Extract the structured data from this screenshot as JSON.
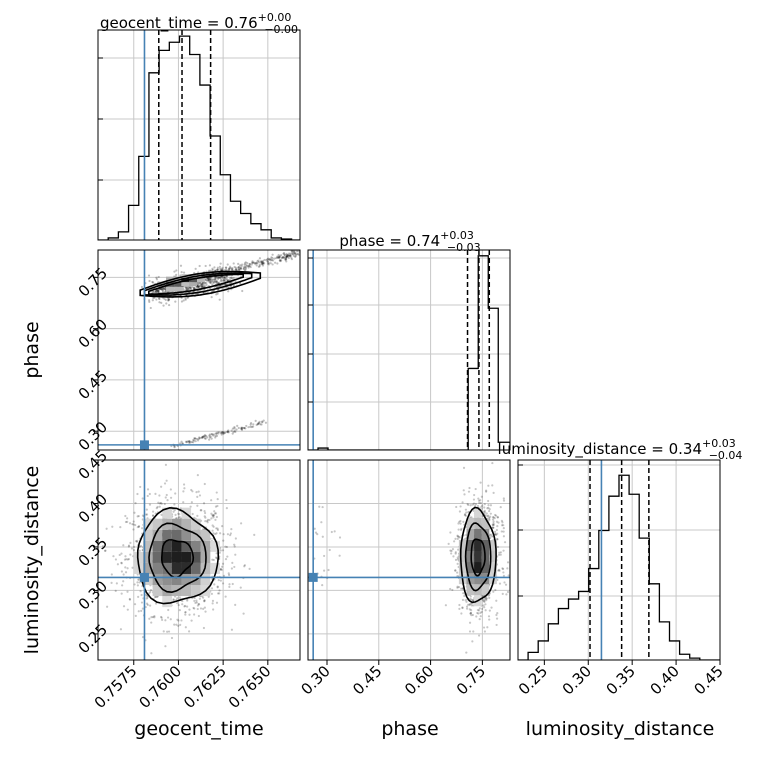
{
  "chart_data": {
    "type": "corner",
    "parameters": [
      "geocent_time",
      "phase",
      "luminosity_distance"
    ],
    "truth": {
      "geocent_time": 0.7581,
      "phase": 0.26,
      "luminosity_distance": 0.315
    },
    "colors": {
      "truth": "#4682b4",
      "hist": "#000000",
      "grid": "#c8c8c8"
    },
    "grid": true,
    "marginals": [
      {
        "param": "geocent_time",
        "title_base": "geocent_time = 0.76",
        "title_sup": "+0.00",
        "title_sub": "−0.00",
        "xlim": [
          0.7555,
          0.7668
        ],
        "ylim": [
          0,
          1.03
        ],
        "quantiles": [
          0.7589,
          0.7602,
          0.7618
        ],
        "edges": [
          0.7555,
          0.75607,
          0.75664,
          0.75721,
          0.75778,
          0.75835,
          0.75892,
          0.75949,
          0.76006,
          0.76063,
          0.7612,
          0.76177,
          0.76234,
          0.76291,
          0.76348,
          0.76405,
          0.76462,
          0.76519,
          0.76576,
          0.76633,
          0.7668
        ],
        "counts": [
          0.0,
          0.01,
          0.04,
          0.17,
          0.41,
          0.82,
          0.93,
          0.97,
          1.0,
          0.91,
          0.76,
          0.51,
          0.32,
          0.19,
          0.13,
          0.08,
          0.05,
          0.01,
          0.005,
          0.0
        ]
      },
      {
        "param": "phase",
        "title_base": "phase = 0.74",
        "title_sup": "+0.03",
        "title_sub": "−0.03",
        "xlim": [
          0.245,
          0.83
        ],
        "ylim": [
          0,
          1.03
        ],
        "quantiles": [
          0.707,
          0.74,
          0.77
        ],
        "edges": [
          0.245,
          0.274,
          0.303,
          0.332,
          0.361,
          0.39,
          0.419,
          0.448,
          0.477,
          0.506,
          0.535,
          0.564,
          0.593,
          0.622,
          0.651,
          0.68,
          0.709,
          0.738,
          0.767,
          0.796,
          0.83
        ],
        "counts": [
          0.0,
          0.01,
          0.0,
          0.0,
          0.0,
          0.0,
          0.0,
          0.0,
          0.0,
          0.0,
          0.0,
          0.0,
          0.0,
          0.0,
          0.0,
          0.0,
          0.42,
          1.0,
          0.73,
          0.04
        ]
      },
      {
        "param": "luminosity_distance",
        "title_base": "luminosity_distance = 0.34",
        "title_sup": "+0.03",
        "title_sub": "−0.04",
        "xlim": [
          0.22,
          0.45
        ],
        "ylim": [
          0,
          1.05
        ],
        "quantiles": [
          0.302,
          0.338,
          0.369
        ],
        "edges": [
          0.22,
          0.2315,
          0.243,
          0.2545,
          0.266,
          0.2775,
          0.289,
          0.3005,
          0.312,
          0.3235,
          0.335,
          0.3465,
          0.358,
          0.3695,
          0.381,
          0.3925,
          0.404,
          0.4155,
          0.427,
          0.4385,
          0.45
        ],
        "counts": [
          0.0,
          0.04,
          0.1,
          0.19,
          0.27,
          0.32,
          0.36,
          0.48,
          0.68,
          0.86,
          0.97,
          0.87,
          0.64,
          0.4,
          0.2,
          0.1,
          0.03,
          0.01,
          0.0,
          0.0
        ]
      }
    ],
    "pairs": [
      {
        "x": "geocent_time",
        "y": "phase",
        "xlim": [
          0.7555,
          0.7668
        ],
        "ylim": [
          0.245,
          0.83
        ],
        "dense_region": {
          "x": [
            0.7585,
            0.763
          ],
          "y": [
            0.68,
            0.78
          ]
        },
        "tail": {
          "x": [
            0.7612,
            0.7668
          ],
          "y": [
            0.75,
            0.82
          ]
        },
        "wrap_band": {
          "x": [
            0.7595,
            0.765
          ],
          "y": [
            0.255,
            0.33
          ]
        }
      },
      {
        "x": "geocent_time",
        "y": "luminosity_distance",
        "xlim": [
          0.7555,
          0.7668
        ],
        "ylim": [
          0.22,
          0.45
        ],
        "center": [
          0.7599,
          0.338
        ],
        "spread": [
          0.0011,
          0.026
        ]
      },
      {
        "x": "phase",
        "y": "luminosity_distance",
        "xlim": [
          0.245,
          0.83
        ],
        "ylim": [
          0.22,
          0.45
        ],
        "center": [
          0.737,
          0.339
        ],
        "spread": [
          0.025,
          0.026
        ]
      }
    ],
    "ticks": {
      "geocent_time": {
        "values": [
          0.7575,
          0.76,
          0.7625,
          0.765
        ],
        "labels": [
          "0.7575",
          "0.7600",
          "0.7625",
          "0.7650"
        ]
      },
      "phase": {
        "values": [
          0.3,
          0.45,
          0.6,
          0.75
        ],
        "labels": [
          "0.30",
          "0.45",
          "0.60",
          "0.75"
        ]
      },
      "luminosity_distance": {
        "values": [
          0.25,
          0.3,
          0.35,
          0.4,
          0.45
        ],
        "labels": [
          "0.25",
          "0.30",
          "0.35",
          "0.40",
          "0.45"
        ]
      }
    },
    "axis_labels": {
      "bottom": [
        "geocent_time",
        "phase",
        "luminosity_distance"
      ],
      "left": [
        "phase",
        "luminosity_distance"
      ]
    }
  }
}
